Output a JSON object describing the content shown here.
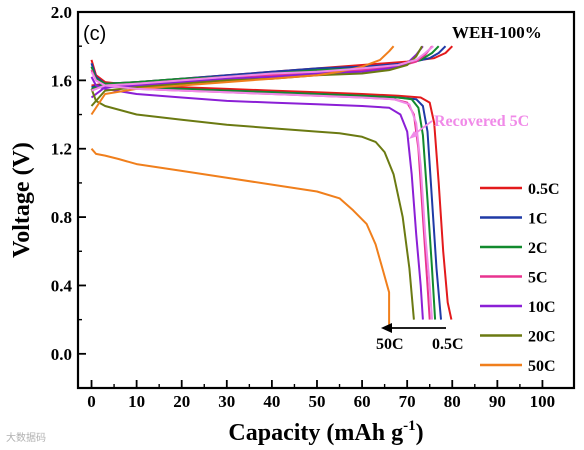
{
  "chart_data": {
    "type": "line",
    "panel_label": "(c)",
    "sample_label": "WEH-100%",
    "xlabel": "Capacity (mAh g",
    "xlabel_sup": "-1",
    "xlabel_close": ")",
    "ylabel": "Voltage (V)",
    "xlim": [
      -3,
      107
    ],
    "ylim": [
      -0.2,
      2.0
    ],
    "x_ticks": [
      0,
      10,
      20,
      30,
      40,
      50,
      60,
      70,
      80,
      90,
      100
    ],
    "y_ticks": [
      0.0,
      0.4,
      0.8,
      1.2,
      1.6,
      2.0
    ],
    "y_tick_labels": [
      "0.0",
      "0.4",
      "0.8",
      "1.2",
      "1.6",
      "2.0"
    ],
    "grid": false,
    "legend_position": "right",
    "annotations": {
      "recovered": "Recovered 5C",
      "arrow_left": "50C",
      "arrow_right": "0.5C"
    },
    "watermark": "大数据码",
    "series": [
      {
        "name": "0.5C",
        "color": "#e31a1c",
        "charge": [
          [
            0,
            1.57
          ],
          [
            3,
            1.58
          ],
          [
            10,
            1.59
          ],
          [
            20,
            1.61
          ],
          [
            30,
            1.63
          ],
          [
            40,
            1.65
          ],
          [
            50,
            1.67
          ],
          [
            60,
            1.69
          ],
          [
            70,
            1.71
          ],
          [
            76,
            1.73
          ],
          [
            78.5,
            1.76
          ],
          [
            80,
            1.8
          ]
        ],
        "discharge": [
          [
            0,
            1.72
          ],
          [
            1,
            1.63
          ],
          [
            3,
            1.59
          ],
          [
            10,
            1.57
          ],
          [
            20,
            1.56
          ],
          [
            30,
            1.55
          ],
          [
            40,
            1.54
          ],
          [
            50,
            1.53
          ],
          [
            60,
            1.52
          ],
          [
            68,
            1.51
          ],
          [
            73,
            1.5
          ],
          [
            75,
            1.47
          ],
          [
            76,
            1.35
          ],
          [
            77,
            1.0
          ],
          [
            78,
            0.6
          ],
          [
            79,
            0.3
          ],
          [
            79.8,
            0.2
          ]
        ]
      },
      {
        "name": "1C",
        "color": "#1f3aa6",
        "charge": [
          [
            0,
            1.56
          ],
          [
            3,
            1.58
          ],
          [
            10,
            1.59
          ],
          [
            20,
            1.61
          ],
          [
            30,
            1.63
          ],
          [
            40,
            1.65
          ],
          [
            50,
            1.67
          ],
          [
            60,
            1.68
          ],
          [
            70,
            1.7
          ],
          [
            75,
            1.73
          ],
          [
            77,
            1.76
          ],
          [
            78.5,
            1.8
          ]
        ],
        "discharge": [
          [
            0,
            1.7
          ],
          [
            1,
            1.62
          ],
          [
            3,
            1.58
          ],
          [
            10,
            1.56
          ],
          [
            20,
            1.55
          ],
          [
            30,
            1.54
          ],
          [
            40,
            1.53
          ],
          [
            50,
            1.52
          ],
          [
            60,
            1.51
          ],
          [
            68,
            1.5
          ],
          [
            72,
            1.49
          ],
          [
            73.5,
            1.45
          ],
          [
            74.5,
            1.3
          ],
          [
            75.5,
            0.9
          ],
          [
            76.5,
            0.5
          ],
          [
            77.5,
            0.2
          ]
        ]
      },
      {
        "name": "2C",
        "color": "#128a2e",
        "charge": [
          [
            0,
            1.55
          ],
          [
            3,
            1.58
          ],
          [
            10,
            1.59
          ],
          [
            20,
            1.61
          ],
          [
            30,
            1.62
          ],
          [
            40,
            1.64
          ],
          [
            50,
            1.66
          ],
          [
            60,
            1.67
          ],
          [
            68,
            1.69
          ],
          [
            73,
            1.72
          ],
          [
            75.5,
            1.76
          ],
          [
            77,
            1.8
          ]
        ],
        "discharge": [
          [
            0,
            1.68
          ],
          [
            1,
            1.61
          ],
          [
            3,
            1.58
          ],
          [
            10,
            1.56
          ],
          [
            20,
            1.55
          ],
          [
            30,
            1.54
          ],
          [
            40,
            1.53
          ],
          [
            50,
            1.52
          ],
          [
            60,
            1.51
          ],
          [
            68,
            1.5
          ],
          [
            71,
            1.49
          ],
          [
            72.5,
            1.44
          ],
          [
            73.5,
            1.28
          ],
          [
            74.5,
            0.9
          ],
          [
            75.5,
            0.5
          ],
          [
            76.2,
            0.2
          ]
        ]
      },
      {
        "name": "5C",
        "color": "#e8338f",
        "charge": [
          [
            0,
            1.54
          ],
          [
            3,
            1.57
          ],
          [
            10,
            1.58
          ],
          [
            20,
            1.6
          ],
          [
            30,
            1.62
          ],
          [
            40,
            1.63
          ],
          [
            50,
            1.65
          ],
          [
            60,
            1.66
          ],
          [
            68,
            1.68
          ],
          [
            72,
            1.71
          ],
          [
            74,
            1.75
          ],
          [
            75.5,
            1.8
          ]
        ],
        "discharge": [
          [
            0,
            1.66
          ],
          [
            1,
            1.6
          ],
          [
            3,
            1.57
          ],
          [
            10,
            1.55
          ],
          [
            20,
            1.54
          ],
          [
            30,
            1.53
          ],
          [
            40,
            1.52
          ],
          [
            50,
            1.51
          ],
          [
            60,
            1.5
          ],
          [
            67,
            1.49
          ],
          [
            70,
            1.47
          ],
          [
            71.5,
            1.4
          ],
          [
            72.5,
            1.2
          ],
          [
            73.5,
            0.8
          ],
          [
            74.5,
            0.4
          ],
          [
            75,
            0.2
          ]
        ]
      },
      {
        "name": "10C",
        "color": "#8b1fd6",
        "charge": [
          [
            0,
            1.5
          ],
          [
            3,
            1.56
          ],
          [
            10,
            1.57
          ],
          [
            20,
            1.59
          ],
          [
            30,
            1.61
          ],
          [
            40,
            1.62
          ],
          [
            50,
            1.64
          ],
          [
            60,
            1.65
          ],
          [
            66,
            1.67
          ],
          [
            70,
            1.7
          ],
          [
            72,
            1.75
          ],
          [
            73.5,
            1.8
          ]
        ],
        "discharge": [
          [
            0,
            1.62
          ],
          [
            1,
            1.57
          ],
          [
            3,
            1.55
          ],
          [
            10,
            1.52
          ],
          [
            20,
            1.5
          ],
          [
            30,
            1.48
          ],
          [
            40,
            1.47
          ],
          [
            50,
            1.46
          ],
          [
            60,
            1.45
          ],
          [
            66,
            1.44
          ],
          [
            68.5,
            1.4
          ],
          [
            70,
            1.3
          ],
          [
            71,
            1.05
          ],
          [
            72,
            0.7
          ],
          [
            73,
            0.4
          ],
          [
            73.5,
            0.2
          ]
        ]
      },
      {
        "name": "20C",
        "color": "#6b7a12",
        "charge": [
          [
            0,
            1.45
          ],
          [
            3,
            1.54
          ],
          [
            10,
            1.56
          ],
          [
            20,
            1.58
          ],
          [
            30,
            1.6
          ],
          [
            40,
            1.61
          ],
          [
            50,
            1.63
          ],
          [
            60,
            1.64
          ],
          [
            66,
            1.66
          ],
          [
            70,
            1.69
          ],
          [
            72,
            1.74
          ],
          [
            73.3,
            1.8
          ]
        ],
        "discharge": [
          [
            0,
            1.55
          ],
          [
            1,
            1.48
          ],
          [
            3,
            1.45
          ],
          [
            10,
            1.4
          ],
          [
            20,
            1.37
          ],
          [
            30,
            1.34
          ],
          [
            40,
            1.32
          ],
          [
            50,
            1.3
          ],
          [
            55,
            1.29
          ],
          [
            60,
            1.27
          ],
          [
            63,
            1.24
          ],
          [
            65,
            1.18
          ],
          [
            67,
            1.05
          ],
          [
            69,
            0.8
          ],
          [
            70.5,
            0.5
          ],
          [
            71.5,
            0.2
          ]
        ]
      },
      {
        "name": "50C",
        "color": "#f07f1c",
        "charge": [
          [
            0,
            1.4
          ],
          [
            3,
            1.52
          ],
          [
            10,
            1.55
          ],
          [
            20,
            1.57
          ],
          [
            30,
            1.59
          ],
          [
            40,
            1.61
          ],
          [
            50,
            1.63
          ],
          [
            55,
            1.65
          ],
          [
            60,
            1.68
          ],
          [
            64,
            1.72
          ],
          [
            66,
            1.77
          ],
          [
            67,
            1.8
          ]
        ],
        "discharge": [
          [
            0,
            1.2
          ],
          [
            1,
            1.17
          ],
          [
            3,
            1.16
          ],
          [
            6,
            1.14
          ],
          [
            10,
            1.11
          ],
          [
            20,
            1.07
          ],
          [
            30,
            1.03
          ],
          [
            40,
            0.99
          ],
          [
            50,
            0.95
          ],
          [
            55,
            0.91
          ],
          [
            58,
            0.84
          ],
          [
            61,
            0.76
          ],
          [
            63,
            0.64
          ],
          [
            64.5,
            0.5
          ],
          [
            66,
            0.36
          ],
          [
            66,
            0.17
          ]
        ]
      },
      {
        "name": "Recovered 5C",
        "color": "#f08ae8",
        "charge": [
          [
            0,
            1.54
          ],
          [
            3,
            1.57
          ],
          [
            10,
            1.58
          ],
          [
            20,
            1.6
          ],
          [
            30,
            1.62
          ],
          [
            40,
            1.64
          ],
          [
            50,
            1.65
          ],
          [
            60,
            1.67
          ],
          [
            68,
            1.69
          ],
          [
            72,
            1.72
          ],
          [
            74,
            1.76
          ],
          [
            75.8,
            1.8
          ]
        ],
        "discharge": [
          [
            0,
            1.65
          ],
          [
            1,
            1.6
          ],
          [
            3,
            1.57
          ],
          [
            10,
            1.55
          ],
          [
            20,
            1.54
          ],
          [
            30,
            1.53
          ],
          [
            40,
            1.52
          ],
          [
            50,
            1.51
          ],
          [
            60,
            1.5
          ],
          [
            67,
            1.49
          ],
          [
            70.5,
            1.46
          ],
          [
            72,
            1.35
          ],
          [
            73,
            1.1
          ],
          [
            74,
            0.7
          ],
          [
            75,
            0.4
          ],
          [
            75.5,
            0.2
          ]
        ]
      }
    ]
  }
}
